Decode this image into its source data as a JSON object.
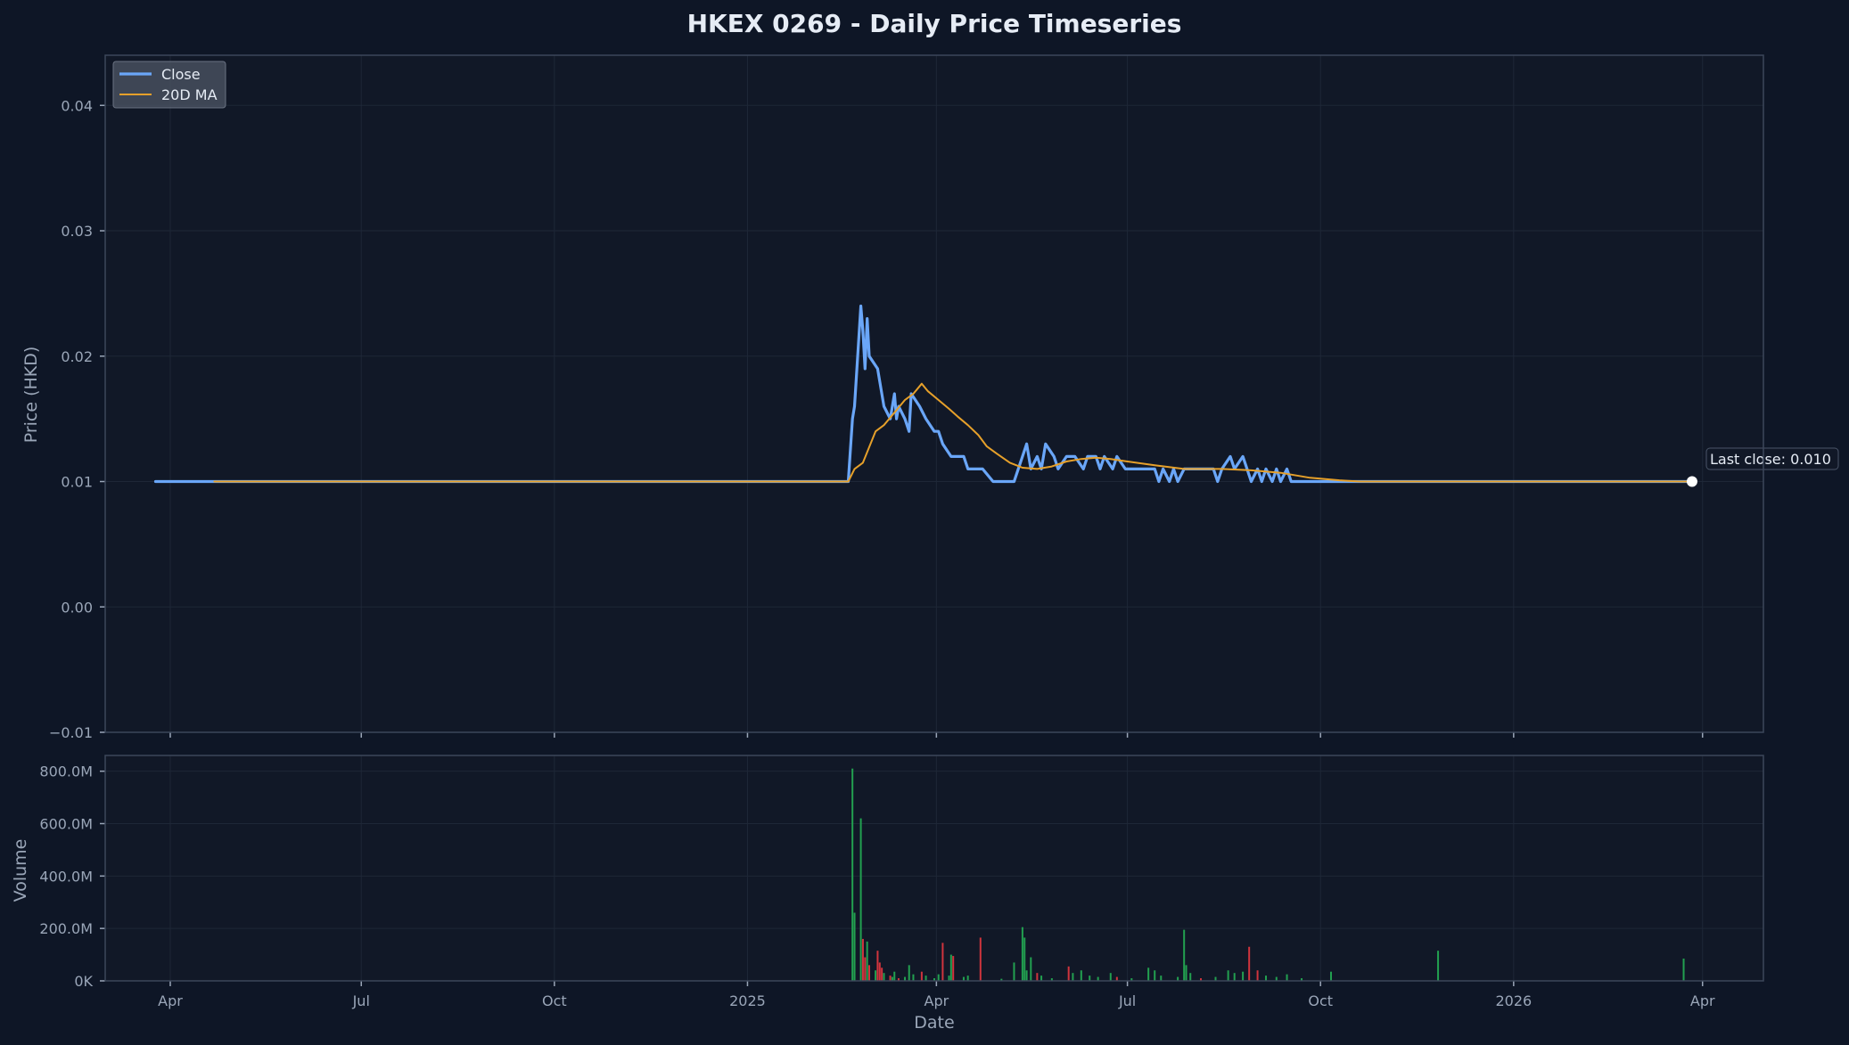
{
  "chart_data": {
    "type": "line",
    "title": "HKEX 0269 - Daily Price Timeseries",
    "price_panel": {
      "ylabel": "Price (HKD)",
      "ylim": [
        -0.01,
        0.044
      ],
      "yticks": [
        -0.01,
        0.0,
        0.01,
        0.02,
        0.03,
        0.04
      ],
      "ytick_labels": [
        "−0.01",
        "0.00",
        "0.01",
        "0.02",
        "0.03",
        "0.04"
      ],
      "grid": true,
      "legend": {
        "placement": "top-left",
        "entries": [
          "Close",
          "20D MA"
        ]
      },
      "annotation": "Last close: 0.010",
      "series": [
        {
          "name": "Close",
          "color": "#6aa6f8",
          "points": [
            [
              "2024-03-25",
              0.01
            ],
            [
              "2025-02-18",
              0.01
            ],
            [
              "2025-02-20",
              0.015
            ],
            [
              "2025-02-21",
              0.016
            ],
            [
              "2025-02-24",
              0.024
            ],
            [
              "2025-02-25",
              0.022
            ],
            [
              "2025-02-26",
              0.019
            ],
            [
              "2025-02-27",
              0.023
            ],
            [
              "2025-02-28",
              0.02
            ],
            [
              "2025-03-04",
              0.019
            ],
            [
              "2025-03-07",
              0.016
            ],
            [
              "2025-03-10",
              0.015
            ],
            [
              "2025-03-12",
              0.017
            ],
            [
              "2025-03-13",
              0.015
            ],
            [
              "2025-03-14",
              0.016
            ],
            [
              "2025-03-17",
              0.015
            ],
            [
              "2025-03-19",
              0.014
            ],
            [
              "2025-03-20",
              0.017
            ],
            [
              "2025-03-24",
              0.016
            ],
            [
              "2025-03-27",
              0.015
            ],
            [
              "2025-03-31",
              0.014
            ],
            [
              "2025-04-02",
              0.014
            ],
            [
              "2025-04-04",
              0.013
            ],
            [
              "2025-04-08",
              0.012
            ],
            [
              "2025-04-14",
              0.012
            ],
            [
              "2025-04-16",
              0.011
            ],
            [
              "2025-04-23",
              0.011
            ],
            [
              "2025-04-28",
              0.01
            ],
            [
              "2025-05-08",
              0.01
            ],
            [
              "2025-05-12",
              0.012
            ],
            [
              "2025-05-14",
              0.013
            ],
            [
              "2025-05-16",
              0.011
            ],
            [
              "2025-05-19",
              0.012
            ],
            [
              "2025-05-21",
              0.011
            ],
            [
              "2025-05-23",
              0.013
            ],
            [
              "2025-05-27",
              0.012
            ],
            [
              "2025-05-29",
              0.011
            ],
            [
              "2025-06-02",
              0.012
            ],
            [
              "2025-06-06",
              0.012
            ],
            [
              "2025-06-10",
              0.011
            ],
            [
              "2025-06-12",
              0.012
            ],
            [
              "2025-06-16",
              0.012
            ],
            [
              "2025-06-18",
              0.011
            ],
            [
              "2025-06-20",
              0.012
            ],
            [
              "2025-06-24",
              0.011
            ],
            [
              "2025-06-26",
              0.012
            ],
            [
              "2025-06-30",
              0.011
            ],
            [
              "2025-07-14",
              0.011
            ],
            [
              "2025-07-16",
              0.01
            ],
            [
              "2025-07-18",
              0.011
            ],
            [
              "2025-07-21",
              0.01
            ],
            [
              "2025-07-23",
              0.011
            ],
            [
              "2025-07-25",
              0.01
            ],
            [
              "2025-07-28",
              0.011
            ],
            [
              "2025-08-11",
              0.011
            ],
            [
              "2025-08-13",
              0.01
            ],
            [
              "2025-08-15",
              0.011
            ],
            [
              "2025-08-19",
              0.012
            ],
            [
              "2025-08-21",
              0.011
            ],
            [
              "2025-08-25",
              0.012
            ],
            [
              "2025-08-27",
              0.011
            ],
            [
              "2025-08-29",
              0.01
            ],
            [
              "2025-09-01",
              0.011
            ],
            [
              "2025-09-03",
              0.01
            ],
            [
              "2025-09-05",
              0.011
            ],
            [
              "2025-09-08",
              0.01
            ],
            [
              "2025-09-10",
              0.011
            ],
            [
              "2025-09-12",
              0.01
            ],
            [
              "2025-09-15",
              0.011
            ],
            [
              "2025-09-17",
              0.01
            ],
            [
              "2025-10-10",
              0.01
            ],
            [
              "2026-03-27",
              0.01
            ]
          ]
        },
        {
          "name": "20D MA",
          "color": "#e6a02a",
          "points": [
            [
              "2024-04-22",
              0.01
            ],
            [
              "2025-02-18",
              0.01
            ],
            [
              "2025-02-21",
              0.011
            ],
            [
              "2025-02-25",
              0.0115
            ],
            [
              "2025-03-03",
              0.014
            ],
            [
              "2025-03-07",
              0.0145
            ],
            [
              "2025-03-12",
              0.0155
            ],
            [
              "2025-03-17",
              0.0165
            ],
            [
              "2025-03-21",
              0.017
            ],
            [
              "2025-03-25",
              0.0178
            ],
            [
              "2025-03-28",
              0.0172
            ],
            [
              "2025-04-02",
              0.0165
            ],
            [
              "2025-04-07",
              0.0158
            ],
            [
              "2025-04-11",
              0.0152
            ],
            [
              "2025-04-16",
              0.0145
            ],
            [
              "2025-04-21",
              0.0137
            ],
            [
              "2025-04-25",
              0.0128
            ],
            [
              "2025-04-30",
              0.0122
            ],
            [
              "2025-05-06",
              0.0115
            ],
            [
              "2025-05-12",
              0.0111
            ],
            [
              "2025-05-19",
              0.011
            ],
            [
              "2025-05-26",
              0.0112
            ],
            [
              "2025-06-02",
              0.0116
            ],
            [
              "2025-06-09",
              0.0118
            ],
            [
              "2025-06-16",
              0.0119
            ],
            [
              "2025-06-23",
              0.0118
            ],
            [
              "2025-07-01",
              0.0116
            ],
            [
              "2025-07-14",
              0.0113
            ],
            [
              "2025-07-28",
              0.011
            ],
            [
              "2025-08-15",
              0.011
            ],
            [
              "2025-08-29",
              0.0109
            ],
            [
              "2025-09-12",
              0.0107
            ],
            [
              "2025-09-26",
              0.0103
            ],
            [
              "2025-10-10",
              0.0101
            ],
            [
              "2025-10-20",
              0.01
            ],
            [
              "2026-03-27",
              0.01
            ]
          ]
        }
      ]
    },
    "volume_panel": {
      "ylabel": "Volume",
      "ylim": [
        0,
        860000000
      ],
      "yticks": [
        0,
        200000000,
        400000000,
        600000000,
        800000000
      ],
      "ytick_labels": [
        "0K",
        "200.0M",
        "400.0M",
        "600.0M",
        "800.0M"
      ],
      "grid": true,
      "up_color": "#22a050",
      "down_color": "#d0343d",
      "bars": [
        [
          "2025-02-20",
          810000000,
          "up"
        ],
        [
          "2025-02-21",
          260000000,
          "up"
        ],
        [
          "2025-02-24",
          620000000,
          "up"
        ],
        [
          "2025-02-25",
          160000000,
          "down"
        ],
        [
          "2025-02-26",
          90000000,
          "down"
        ],
        [
          "2025-02-27",
          150000000,
          "up"
        ],
        [
          "2025-02-28",
          60000000,
          "down"
        ],
        [
          "2025-03-03",
          40000000,
          "up"
        ],
        [
          "2025-03-04",
          115000000,
          "down"
        ],
        [
          "2025-03-05",
          70000000,
          "down"
        ],
        [
          "2025-03-06",
          50000000,
          "down"
        ],
        [
          "2025-03-07",
          30000000,
          "up"
        ],
        [
          "2025-03-10",
          20000000,
          "down"
        ],
        [
          "2025-03-11",
          15000000,
          "up"
        ],
        [
          "2025-03-12",
          35000000,
          "up"
        ],
        [
          "2025-03-14",
          10000000,
          "down"
        ],
        [
          "2025-03-17",
          15000000,
          "up"
        ],
        [
          "2025-03-19",
          60000000,
          "up"
        ],
        [
          "2025-03-21",
          25000000,
          "up"
        ],
        [
          "2025-03-25",
          35000000,
          "down"
        ],
        [
          "2025-03-27",
          20000000,
          "up"
        ],
        [
          "2025-03-31",
          10000000,
          "up"
        ],
        [
          "2025-04-02",
          25000000,
          "up"
        ],
        [
          "2025-04-04",
          145000000,
          "down"
        ],
        [
          "2025-04-07",
          20000000,
          "up"
        ],
        [
          "2025-04-08",
          100000000,
          "up"
        ],
        [
          "2025-04-09",
          95000000,
          "down"
        ],
        [
          "2025-04-14",
          15000000,
          "up"
        ],
        [
          "2025-04-16",
          20000000,
          "up"
        ],
        [
          "2025-04-22",
          165000000,
          "down"
        ],
        [
          "2025-05-02",
          8000000,
          "up"
        ],
        [
          "2025-05-08",
          70000000,
          "up"
        ],
        [
          "2025-05-12",
          205000000,
          "up"
        ],
        [
          "2025-05-13",
          165000000,
          "up"
        ],
        [
          "2025-05-14",
          40000000,
          "up"
        ],
        [
          "2025-05-16",
          90000000,
          "up"
        ],
        [
          "2025-05-19",
          30000000,
          "down"
        ],
        [
          "2025-05-21",
          20000000,
          "up"
        ],
        [
          "2025-05-26",
          10000000,
          "up"
        ],
        [
          "2025-06-03",
          55000000,
          "down"
        ],
        [
          "2025-06-05",
          30000000,
          "up"
        ],
        [
          "2025-06-09",
          40000000,
          "up"
        ],
        [
          "2025-06-13",
          20000000,
          "up"
        ],
        [
          "2025-06-17",
          15000000,
          "up"
        ],
        [
          "2025-06-23",
          30000000,
          "up"
        ],
        [
          "2025-06-26",
          15000000,
          "down"
        ],
        [
          "2025-07-03",
          10000000,
          "up"
        ],
        [
          "2025-07-11",
          50000000,
          "up"
        ],
        [
          "2025-07-14",
          40000000,
          "up"
        ],
        [
          "2025-07-17",
          20000000,
          "up"
        ],
        [
          "2025-07-25",
          15000000,
          "up"
        ],
        [
          "2025-07-28",
          195000000,
          "up"
        ],
        [
          "2025-07-29",
          60000000,
          "up"
        ],
        [
          "2025-07-31",
          30000000,
          "up"
        ],
        [
          "2025-08-05",
          10000000,
          "down"
        ],
        [
          "2025-08-12",
          15000000,
          "up"
        ],
        [
          "2025-08-18",
          40000000,
          "up"
        ],
        [
          "2025-08-21",
          30000000,
          "up"
        ],
        [
          "2025-08-25",
          35000000,
          "up"
        ],
        [
          "2025-08-28",
          130000000,
          "down"
        ],
        [
          "2025-09-01",
          40000000,
          "down"
        ],
        [
          "2025-09-05",
          20000000,
          "up"
        ],
        [
          "2025-09-10",
          15000000,
          "up"
        ],
        [
          "2025-09-15",
          25000000,
          "up"
        ],
        [
          "2025-09-22",
          10000000,
          "up"
        ],
        [
          "2025-10-06",
          35000000,
          "up"
        ],
        [
          "2025-11-26",
          115000000,
          "up"
        ],
        [
          "2026-03-23",
          85000000,
          "up"
        ]
      ]
    },
    "x_axis": {
      "xlabel": "Date",
      "range": [
        "2024-03-01",
        "2026-04-30"
      ],
      "ticks": [
        [
          "2024-04-01",
          "Apr"
        ],
        [
          "2024-07-01",
          "Jul"
        ],
        [
          "2024-10-01",
          "Oct"
        ],
        [
          "2025-01-01",
          "2025"
        ],
        [
          "2025-04-01",
          "Apr"
        ],
        [
          "2025-07-01",
          "Jul"
        ],
        [
          "2025-10-01",
          "Oct"
        ],
        [
          "2026-01-01",
          "2026"
        ],
        [
          "2026-04-01",
          "Apr"
        ]
      ]
    }
  }
}
